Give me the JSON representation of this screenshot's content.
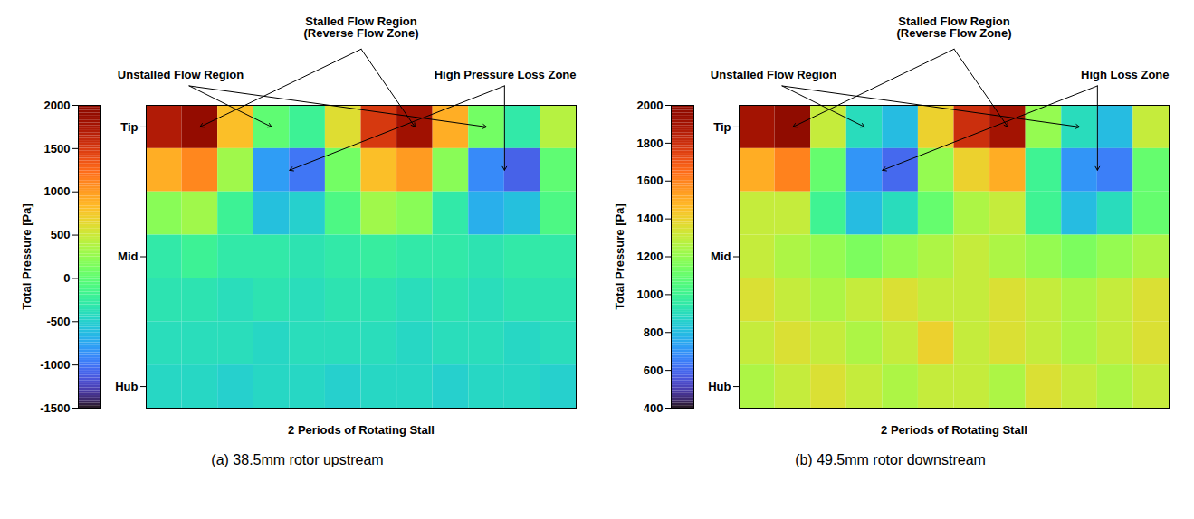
{
  "chart_data": [
    {
      "type": "heatmap",
      "title": "(a) 38.5mm rotor upstream",
      "x_label": "2 Periods of Rotating Stall",
      "categories": [
        "Tip",
        null,
        null,
        "Mid",
        null,
        null,
        "Hub"
      ],
      "cells": [
        [
          1700,
          1900,
          800,
          0,
          -200,
          600,
          1500,
          1800,
          900,
          100,
          -300,
          400
        ],
        [
          900,
          1100,
          300,
          -800,
          -1000,
          100,
          800,
          1000,
          200,
          -900,
          -1100,
          0
        ],
        [
          200,
          300,
          -200,
          -600,
          -500,
          -100,
          300,
          200,
          -300,
          -700,
          -600,
          -100
        ],
        [
          -300,
          -200,
          -300,
          -300,
          -350,
          -300,
          -250,
          -300,
          -300,
          -350,
          -300,
          -300
        ],
        [
          -350,
          -350,
          -400,
          -350,
          -400,
          -350,
          -350,
          -400,
          -350,
          -400,
          -350,
          -350
        ],
        [
          -400,
          -400,
          -400,
          -450,
          -400,
          -400,
          -400,
          -450,
          -400,
          -400,
          -450,
          -400
        ],
        [
          -450,
          -450,
          -500,
          -450,
          -450,
          -500,
          -450,
          -450,
          -500,
          -450,
          -450,
          -500
        ]
      ],
      "colorbar": {
        "label": "Total Pressure [Pa]",
        "range": [
          -1500,
          2000
        ],
        "ticks": [
          -1500,
          -1000,
          -500,
          0,
          500,
          1000,
          1500,
          2000
        ]
      },
      "color": "turbo",
      "tick_labels": "y",
      "annotations": [
        "Unstalled Flow Region",
        "Stalled Flow Region (Reverse Flow Zone)",
        "High Pressure Loss Zone"
      ]
    },
    {
      "type": "heatmap",
      "title": "(b) 49.5mm rotor downstream",
      "x_label": "2 Periods of Rotating Stall",
      "categories": [
        "Tip",
        null,
        null,
        "Mid",
        null,
        null,
        "Hub"
      ],
      "cells": [
        [
          1900,
          2000,
          1300,
          900,
          800,
          1400,
          1800,
          1900,
          1200,
          900,
          800,
          1300
        ],
        [
          1500,
          1600,
          1100,
          700,
          600,
          1200,
          1400,
          1500,
          1000,
          700,
          650,
          1100
        ],
        [
          1300,
          1300,
          1000,
          800,
          900,
          1100,
          1250,
          1300,
          1000,
          800,
          900,
          1100
        ],
        [
          1300,
          1250,
          1200,
          1150,
          1200,
          1250,
          1300,
          1250,
          1200,
          1150,
          1200,
          1250
        ],
        [
          1350,
          1300,
          1250,
          1300,
          1350,
          1300,
          1300,
          1350,
          1300,
          1250,
          1300,
          1350
        ],
        [
          1300,
          1350,
          1300,
          1250,
          1300,
          1400,
          1300,
          1350,
          1300,
          1250,
          1300,
          1350
        ],
        [
          1250,
          1300,
          1350,
          1300,
          1250,
          1300,
          1300,
          1250,
          1350,
          1300,
          1250,
          1300
        ]
      ],
      "colorbar": {
        "label": "Total Pressure [Pa]",
        "range": [
          400,
          2000
        ],
        "ticks": [
          400,
          600,
          800,
          1000,
          1200,
          1400,
          1600,
          1800,
          2000
        ]
      },
      "color": "turbo",
      "tick_labels": "y",
      "annotations": [
        "Unstalled Flow Region",
        "Stalled Flow Region (Reverse Flow Zone)",
        "High Loss Zone"
      ]
    }
  ]
}
